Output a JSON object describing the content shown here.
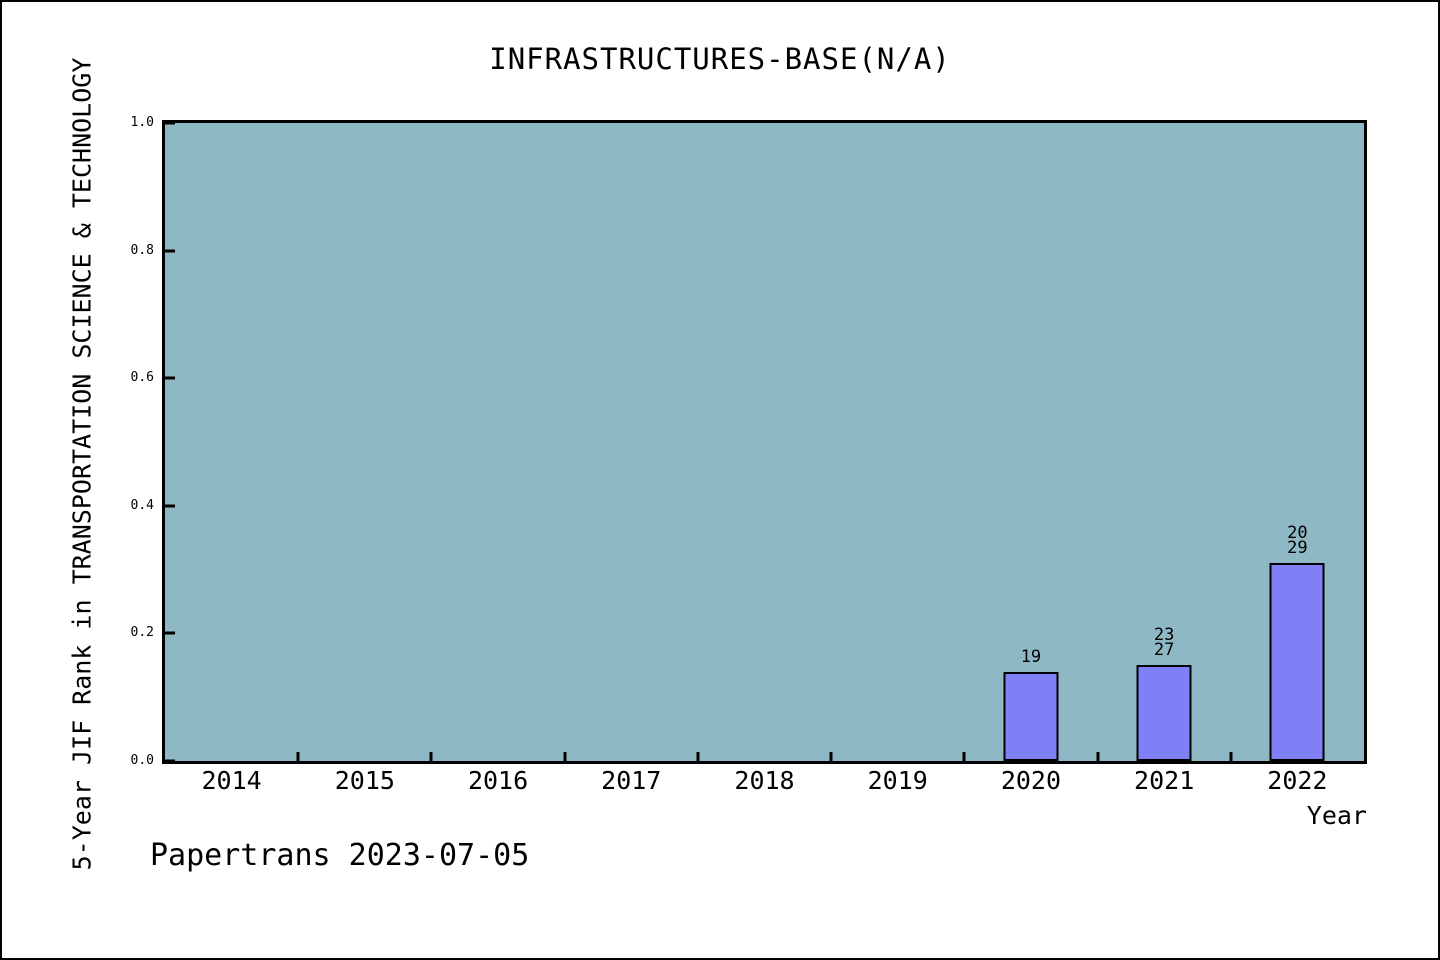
{
  "page": {
    "background_color": "#ffffff",
    "frame_color": "#000000"
  },
  "watermark": {
    "text": "Papertrans 2023-07-05"
  },
  "chart_data": {
    "type": "bar",
    "title": "INFRASTRUCTURES-BASE(N/A)",
    "xlabel": "Year",
    "ylabel": "5-Year JIF Rank in TRANSPORTATION SCIENCE & TECHNOLOGY",
    "categories": [
      "2014",
      "2015",
      "2016",
      "2017",
      "2018",
      "2019",
      "2020",
      "2021",
      "2022"
    ],
    "values": [
      null,
      null,
      null,
      null,
      null,
      null,
      0.14,
      0.15,
      0.31
    ],
    "bar_labels": [
      [],
      [],
      [],
      [],
      [],
      [],
      [
        "19"
      ],
      [
        "23",
        "27"
      ],
      [
        "20",
        "29"
      ]
    ],
    "ylim": [
      0,
      1
    ],
    "yticks": [
      {
        "label": "0.0",
        "value": 0.0
      },
      {
        "label": "0.2",
        "value": 0.2
      },
      {
        "label": "0.4",
        "value": 0.4
      },
      {
        "label": "0.6",
        "value": 0.6
      },
      {
        "label": "0.8",
        "value": 0.8
      },
      {
        "label": "1.0",
        "value": 1.0
      }
    ],
    "grid": false,
    "legend": null,
    "colors": {
      "plot_background": "#8FB8C5",
      "bar_fill": "#7F80F8",
      "bar_edge": "#000000",
      "axis": "#000000",
      "text": "#000000"
    }
  }
}
